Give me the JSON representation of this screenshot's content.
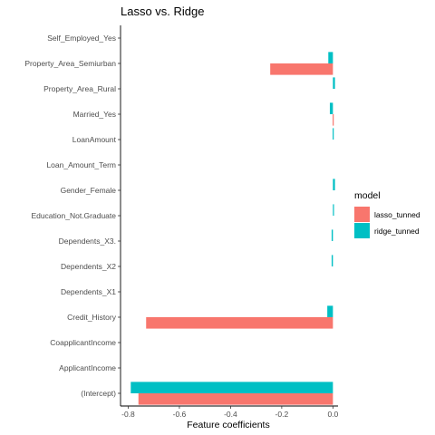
{
  "chart_data": {
    "type": "bar",
    "orientation": "horizontal",
    "title": "Lasso vs. Ridge",
    "xlabel": "Feature coefficients",
    "ylabel": "",
    "xlim": [
      -0.83,
      0.02
    ],
    "x_ticks": [
      -0.8,
      -0.6,
      -0.4,
      -0.2,
      0.0
    ],
    "x_tick_labels": [
      "-0.8",
      "-0.6",
      "-0.4",
      "-0.2",
      "0.0"
    ],
    "grid": false,
    "legend_position": "right",
    "legend_title": "model",
    "categories": [
      "Self_Employed_Yes",
      "Property_Area_Semiurban",
      "Property_Area_Rural",
      "Married_Yes",
      "LoanAmount",
      "Loan_Amount_Term",
      "Gender_Female",
      "Education_Not.Graduate",
      "Dependents_X3.",
      "Dependents_X2",
      "Dependents_X1",
      "Credit_History",
      "CoapplicantIncome",
      "ApplicantIncome",
      "(Intercept)"
    ],
    "series": [
      {
        "name": "lasso_tunned",
        "color": "#F8766D",
        "values": [
          0,
          -0.245,
          0,
          -0.001,
          0,
          0,
          0,
          0,
          0,
          0,
          0,
          -0.73,
          0,
          0,
          -0.76
        ]
      },
      {
        "name": "ridge_tunned",
        "color": "#00BFC4",
        "values": [
          0,
          -0.018,
          0.008,
          -0.012,
          -0.001,
          0,
          0.008,
          0.004,
          -0.005,
          -0.005,
          0,
          -0.022,
          0,
          0,
          -0.79
        ]
      }
    ]
  }
}
